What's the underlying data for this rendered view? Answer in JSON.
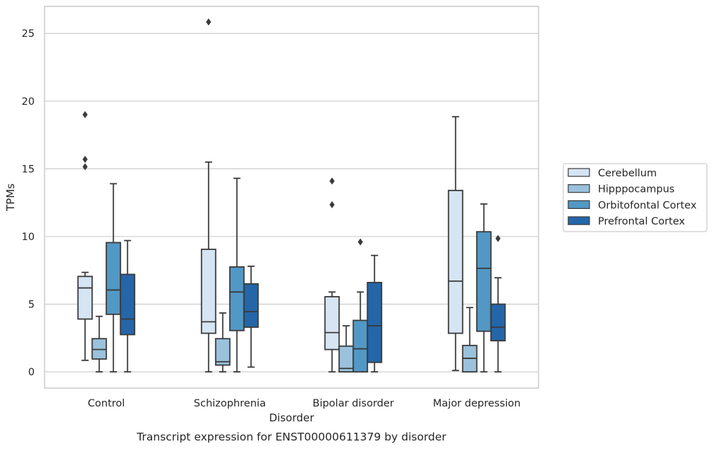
{
  "chart_data": {
    "type": "box",
    "caption": "Transcript expression for ENST00000611379 by disorder",
    "xlabel": "Disorder",
    "ylabel": "TPMs",
    "ylim": [
      -1.2,
      27
    ],
    "yticks": [
      0,
      5,
      10,
      15,
      20,
      25
    ],
    "grid": true,
    "legend_position": "right",
    "categories": [
      "Control",
      "Schizophrenia",
      "Bipolar disorder",
      "Major depression"
    ],
    "series": [
      {
        "name": "Cerebellum",
        "color": "#d6e5f3",
        "boxes": [
          {
            "whislo": 0.85,
            "q1": 3.9,
            "med": 6.2,
            "q3": 7.05,
            "whishi": 7.35,
            "fliers": [
              15.15,
              15.7,
              19.0
            ]
          },
          {
            "whislo": 0.0,
            "q1": 2.85,
            "med": 3.7,
            "q3": 9.05,
            "whishi": 15.5,
            "fliers": [
              25.85
            ]
          },
          {
            "whislo": 0.0,
            "q1": 1.65,
            "med": 2.9,
            "q3": 5.55,
            "whishi": 5.9,
            "fliers": [
              12.35,
              14.1
            ]
          },
          {
            "whislo": 0.1,
            "q1": 2.85,
            "med": 6.7,
            "q3": 13.4,
            "whishi": 18.85,
            "fliers": []
          }
        ]
      },
      {
        "name": "Hipppocampus",
        "color": "#9ac2dc",
        "boxes": [
          {
            "whislo": 0.0,
            "q1": 0.95,
            "med": 1.65,
            "q3": 2.45,
            "whishi": 4.1,
            "fliers": []
          },
          {
            "whislo": 0.0,
            "q1": 0.5,
            "med": 0.75,
            "q3": 2.45,
            "whishi": 4.35,
            "fliers": []
          },
          {
            "whislo": 0.0,
            "q1": 0.0,
            "med": 0.25,
            "q3": 1.9,
            "whishi": 3.4,
            "fliers": []
          },
          {
            "whislo": 0.0,
            "q1": 0.0,
            "med": 1.0,
            "q3": 1.95,
            "whishi": 4.75,
            "fliers": []
          }
        ]
      },
      {
        "name": "Orbitofontal Cortex",
        "color": "#5298c5",
        "boxes": [
          {
            "whislo": 0.0,
            "q1": 4.25,
            "med": 6.05,
            "q3": 9.55,
            "whishi": 13.9,
            "fliers": []
          },
          {
            "whislo": 0.0,
            "q1": 3.05,
            "med": 5.9,
            "q3": 7.75,
            "whishi": 14.3,
            "fliers": []
          },
          {
            "whislo": 0.0,
            "q1": 0.0,
            "med": 1.7,
            "q3": 3.8,
            "whishi": 5.9,
            "fliers": [
              9.6
            ]
          },
          {
            "whislo": 0.0,
            "q1": 3.0,
            "med": 7.65,
            "q3": 10.35,
            "whishi": 12.4,
            "fliers": []
          }
        ]
      },
      {
        "name": "Prefrontal Cortex",
        "color": "#2466a8",
        "boxes": [
          {
            "whislo": 0.0,
            "q1": 2.75,
            "med": 3.9,
            "q3": 7.2,
            "whishi": 9.7,
            "fliers": []
          },
          {
            "whislo": 0.35,
            "q1": 3.3,
            "med": 4.45,
            "q3": 6.5,
            "whishi": 7.8,
            "fliers": []
          },
          {
            "whislo": 0.0,
            "q1": 0.7,
            "med": 3.4,
            "q3": 6.6,
            "whishi": 8.6,
            "fliers": []
          },
          {
            "whislo": 0.0,
            "q1": 2.3,
            "med": 3.3,
            "q3": 5.0,
            "whishi": 6.95,
            "fliers": [
              9.85
            ]
          }
        ]
      }
    ]
  }
}
